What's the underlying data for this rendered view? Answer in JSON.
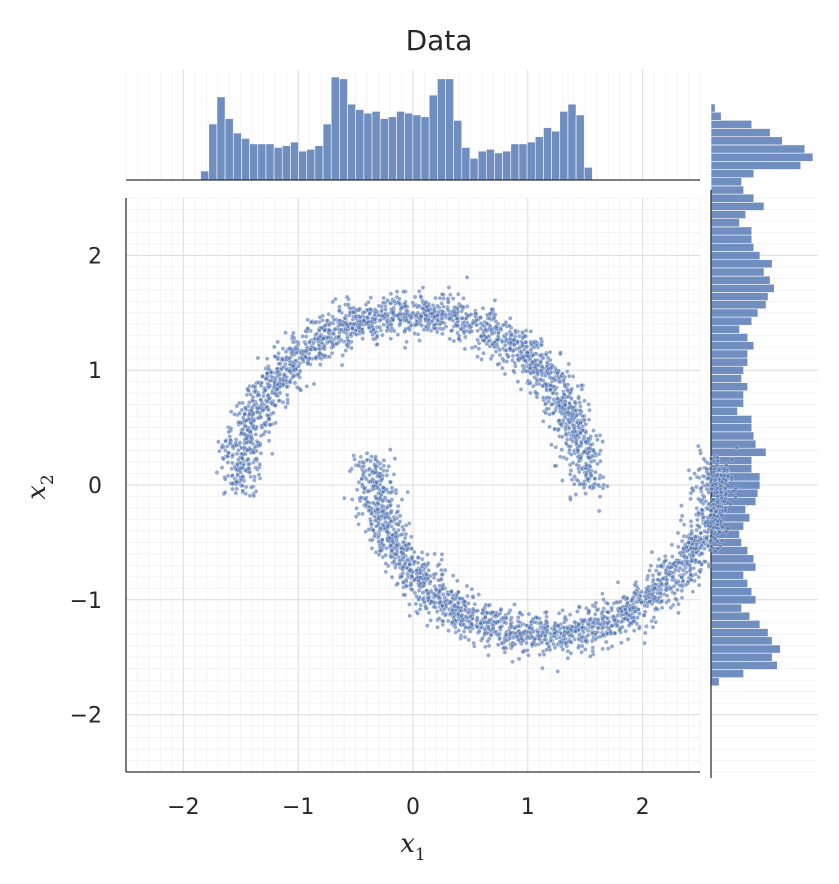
{
  "chart_data": {
    "type": "scatter",
    "title": "Data",
    "xlabel": "x",
    "xlabel_sub": "1",
    "ylabel": "x",
    "ylabel_sub": "2",
    "xlim": [
      -2.5,
      2.5
    ],
    "ylim": [
      -2.5,
      2.5
    ],
    "xticks": [
      -2,
      -1,
      0,
      1,
      2
    ],
    "yticks": [
      -2,
      -1,
      0,
      1,
      2
    ],
    "xtick_labels": [
      "−2",
      "−1",
      "0",
      "1",
      "2"
    ],
    "ytick_labels": [
      "−2",
      "−1",
      "0",
      "1",
      "2"
    ],
    "grid": true,
    "marginal_histograms": true,
    "series": [
      {
        "kind": "two-moons",
        "color": "#4c72b0",
        "point_count": 4000,
        "upper_moon": {
          "center": [
            0,
            0
          ],
          "radius": 1.5,
          "angle_range_deg": [
            0,
            180
          ],
          "noise_sd": 0.09
        },
        "lower_moon": {
          "center": [
            1.15,
            0.2
          ],
          "radius": 1.5,
          "angle_range_deg": [
            180,
            360
          ],
          "noise_sd": 0.09
        }
      }
    ],
    "top_histogram": {
      "bin_start": -1.85,
      "bin_width": 0.0711,
      "counts": [
        10,
        62,
        92,
        68,
        52,
        46,
        40,
        40,
        40,
        36,
        38,
        42,
        32,
        34,
        38,
        62,
        114,
        112,
        84,
        78,
        74,
        76,
        68,
        70,
        76,
        74,
        72,
        70,
        94,
        112,
        112,
        66,
        36,
        24,
        32,
        34,
        30,
        32,
        40,
        40,
        42,
        48,
        58,
        54,
        76,
        84,
        72,
        14
      ]
    },
    "right_histogram": {
      "bin_start": -1.75,
      "bin_width": 0.0714,
      "counts": [
        8,
        32,
        65,
        60,
        68,
        60,
        56,
        48,
        38,
        30,
        44,
        40,
        36,
        32,
        44,
        42,
        36,
        30,
        28,
        32,
        38,
        34,
        44,
        46,
        48,
        48,
        40,
        40,
        54,
        44,
        42,
        40,
        40,
        26,
        32,
        32,
        36,
        30,
        32,
        36,
        36,
        42,
        36,
        28,
        40,
        46,
        54,
        56,
        62,
        58,
        52,
        60,
        48,
        42,
        40,
        40,
        28,
        34,
        52,
        42,
        32,
        30,
        42,
        88,
        100,
        92,
        70,
        58,
        40,
        10,
        4
      ]
    }
  }
}
